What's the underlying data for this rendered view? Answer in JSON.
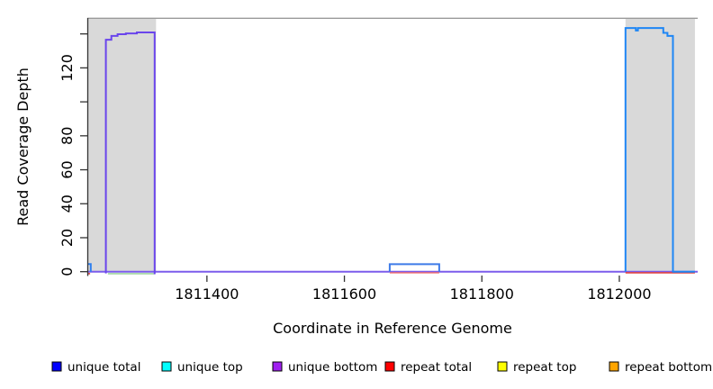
{
  "chart_data": {
    "type": "line",
    "title": "",
    "xlabel": "Coordinate in Reference Genome",
    "ylabel": "Read Coverage Depth",
    "x_range": [
      1811226,
      1812114
    ],
    "y_range": [
      0,
      155
    ],
    "grid": false,
    "legend_position": "bottom",
    "x_ticks": [
      {
        "value": 1811400,
        "label": "1811400"
      },
      {
        "value": 1811600,
        "label": "1811600"
      },
      {
        "value": 1811800,
        "label": "1811800"
      },
      {
        "value": 1812000,
        "label": "1812000"
      }
    ],
    "y_ticks": [
      {
        "value": 0,
        "label": "0"
      },
      {
        "value": 20,
        "label": "20"
      },
      {
        "value": 40,
        "label": "40"
      },
      {
        "value": 60,
        "label": "60"
      },
      {
        "value": 80,
        "label": "80"
      },
      {
        "value": 100,
        "label": ""
      },
      {
        "value": 120,
        "label": "120"
      },
      {
        "value": 140,
        "label": ""
      }
    ],
    "shaded_regions": [
      {
        "name": "left-gray-region",
        "x": [
          1811226,
          1811326
        ],
        "color": "#d9d9d9"
      },
      {
        "name": "right-gray-region",
        "x": [
          1812009,
          1812110
        ],
        "color": "#d9d9d9"
      }
    ],
    "reference_line": {
      "name": "max-depth-line",
      "depth": 149.2,
      "color": "#9a9a9a"
    },
    "series": [
      {
        "name": "unique-bottom-baseline",
        "color": "#7b5cec",
        "width": 2,
        "dy": 0,
        "points": [
          [
            1811226,
            0
          ],
          [
            1812114,
            0
          ]
        ]
      },
      {
        "name": "unique-top-zero-left-segment",
        "color": "#9fd49f",
        "width": 1.6,
        "dy": 2.2,
        "points": [
          [
            1811256,
            0
          ],
          [
            1811324,
            0
          ]
        ]
      },
      {
        "name": "repeat-total-left-corner",
        "color": "#e04040",
        "width": 1.6,
        "dy": 2.2,
        "points": [
          [
            1811226,
            0
          ],
          [
            1811230,
            0
          ]
        ]
      },
      {
        "name": "repeat-total-mid-segment",
        "color": "#f26b6b",
        "width": 1.4,
        "dy": 1.2,
        "points": [
          [
            1811666,
            0
          ],
          [
            1811738,
            0
          ]
        ]
      },
      {
        "name": "repeat-total-right-segment",
        "color": "#e04545",
        "width": 1.6,
        "dy": 1.2,
        "points": [
          [
            1812009,
            0
          ],
          [
            1812110,
            0
          ]
        ]
      },
      {
        "name": "unique-bottom-left-peak",
        "color": "#6a45ec",
        "width": 2,
        "dy": 0,
        "points": [
          [
            1811253,
            -1
          ],
          [
            1811253,
            136.6
          ],
          [
            1811261,
            136.6
          ],
          [
            1811261,
            138.8
          ],
          [
            1811270,
            138.8
          ],
          [
            1811270,
            139.8
          ],
          [
            1811282,
            139.8
          ],
          [
            1811282,
            140.3
          ],
          [
            1811298,
            140.3
          ],
          [
            1811298,
            140.9
          ],
          [
            1811324,
            140.9
          ],
          [
            1811324,
            -1.5
          ]
        ]
      },
      {
        "name": "unique-total-left-edge-step",
        "color": "#2e7fef",
        "width": 2,
        "dy": 0,
        "points": [
          [
            1811226,
            4.5
          ],
          [
            1811231,
            4.5
          ],
          [
            1811231,
            0
          ]
        ]
      },
      {
        "name": "unique-total-mid-bump",
        "color": "#3e7be8",
        "width": 2,
        "dy": 0,
        "points": [
          [
            1811666,
            0
          ],
          [
            1811666,
            4.4
          ],
          [
            1811738,
            4.4
          ],
          [
            1811738,
            0
          ]
        ]
      },
      {
        "name": "unique-total-right-peak",
        "color": "#1e86f5",
        "width": 2,
        "dy": 0,
        "points": [
          [
            1812009,
            0
          ],
          [
            1812009,
            143.5
          ],
          [
            1812024,
            143.5
          ],
          [
            1812024,
            142
          ],
          [
            1812027,
            142
          ],
          [
            1812027,
            143.5
          ],
          [
            1812064,
            143.5
          ],
          [
            1812064,
            140.6
          ],
          [
            1812070,
            140.6
          ],
          [
            1812070,
            138.8
          ],
          [
            1812078,
            138.8
          ],
          [
            1812078,
            0
          ],
          [
            1812110,
            0
          ]
        ]
      }
    ],
    "legend": [
      {
        "label": "unique total",
        "color": "#0000ff"
      },
      {
        "label": "unique top",
        "color": "#00ffff"
      },
      {
        "label": "unique bottom",
        "color": "#a020f0"
      },
      {
        "label": "repeat total",
        "color": "#ff0000"
      },
      {
        "label": "repeat top",
        "color": "#ffff00"
      },
      {
        "label": "repeat bottom",
        "color": "#ffa500"
      }
    ]
  }
}
